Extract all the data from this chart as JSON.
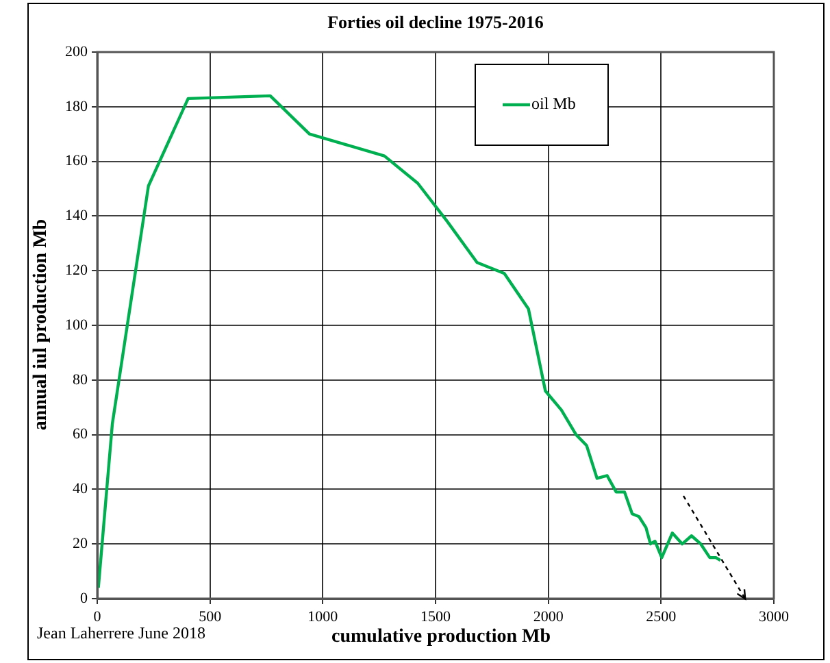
{
  "chart_data": {
    "type": "line",
    "title": "Forties oil decline 1975-2016",
    "xlabel": "cumulative production Mb",
    "ylabel": "annual iul production Mb",
    "annotations": [
      "Jean Laherrere June 2018"
    ],
    "series": [
      {
        "name": "oil Mb",
        "color": "#00b050",
        "x": [
          5,
          67,
          227,
          403,
          767,
          941,
          1107,
          1273,
          1421,
          1552,
          1684,
          1805,
          1912,
          1987,
          2058,
          2123,
          2170,
          2216,
          2261,
          2301,
          2338,
          2372,
          2402,
          2433,
          2453,
          2473,
          2503,
          2550,
          2594,
          2635,
          2676,
          2716,
          2743,
          2763
        ],
        "values": [
          4,
          64,
          151,
          183,
          184,
          170,
          166,
          162,
          152,
          138,
          123,
          119,
          106,
          76,
          69,
          60,
          56,
          44,
          45,
          39,
          39,
          31,
          30,
          26,
          20,
          21,
          15,
          24,
          20,
          23,
          20,
          15,
          15,
          14
        ]
      }
    ],
    "xlim": [
      0,
      3000
    ],
    "xticks": [
      0,
      500,
      1000,
      1500,
      2000,
      2500,
      3000
    ],
    "ylim": [
      0,
      200
    ],
    "yticks": [
      0,
      20,
      40,
      60,
      80,
      100,
      120,
      140,
      160,
      180,
      200
    ],
    "grid": true,
    "legend": "top",
    "marker": "none",
    "line_style": "solid"
  }
}
